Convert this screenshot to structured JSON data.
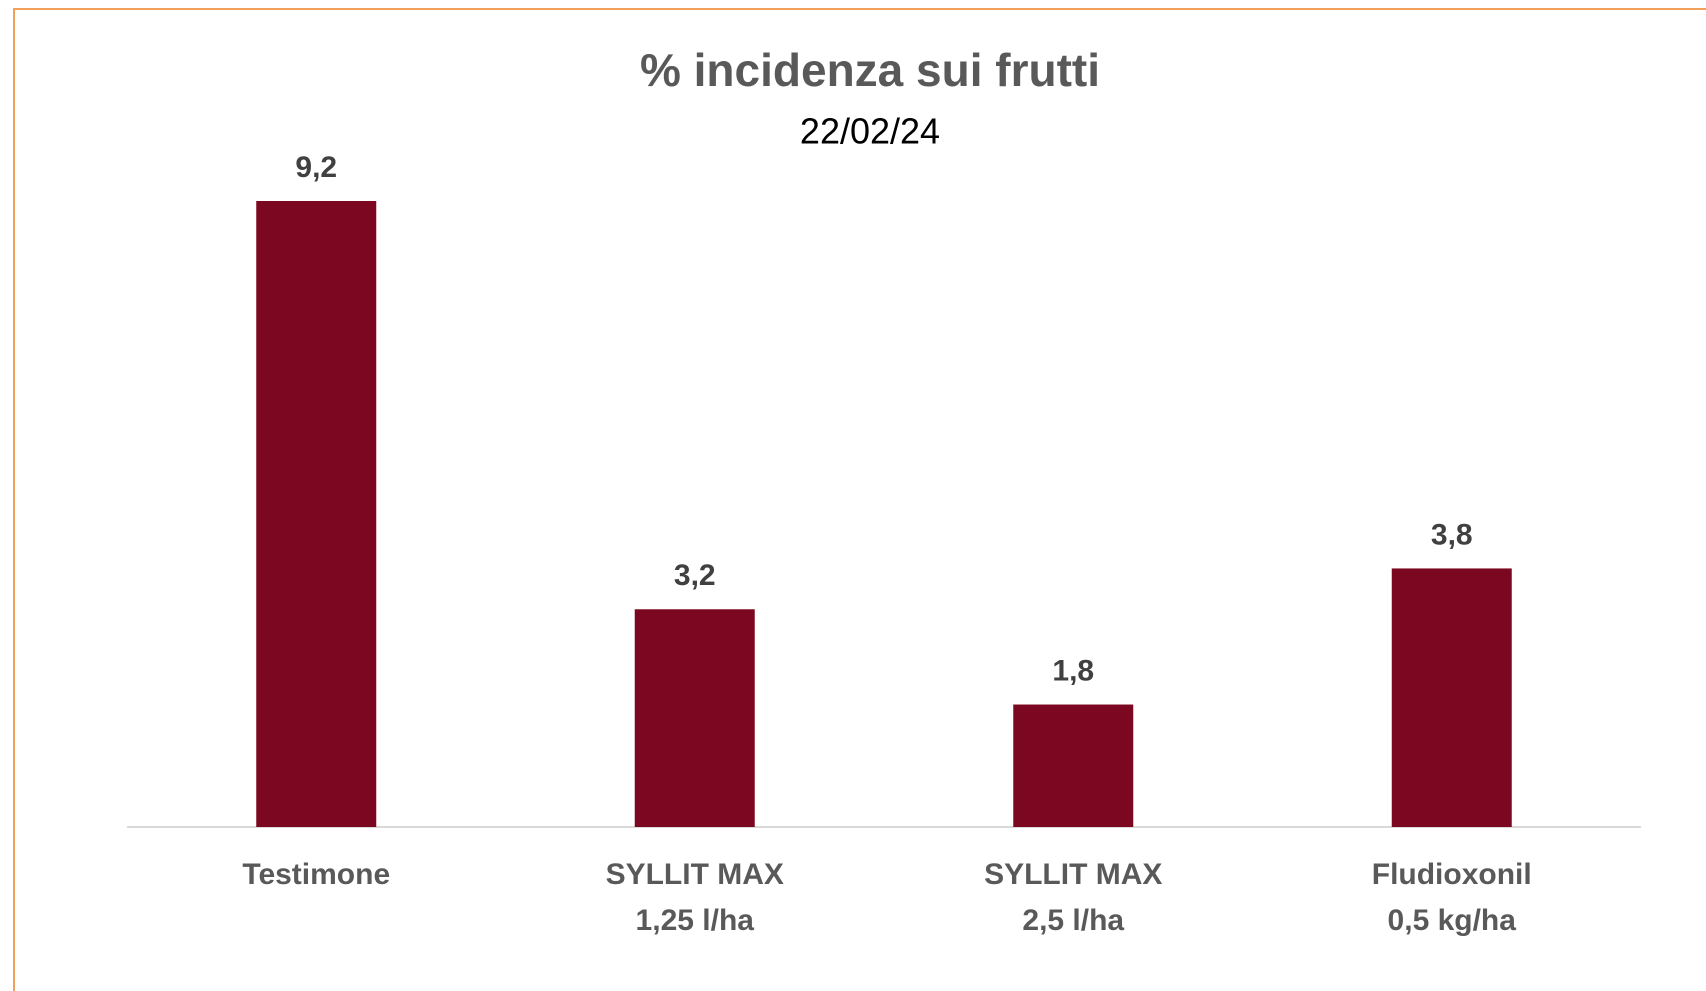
{
  "chart_data": {
    "type": "bar",
    "title": "% incidenza sui frutti",
    "subtitle": "22/02/24",
    "categories": [
      [
        "Testimone"
      ],
      [
        "SYLLIT MAX",
        "1,25 l/ha"
      ],
      [
        "SYLLIT MAX",
        "2,5 l/ha"
      ],
      [
        "Fludioxonil",
        "0,5 kg/ha"
      ]
    ],
    "values": [
      9.2,
      3.2,
      1.8,
      3.8
    ],
    "value_labels": [
      "9,2",
      "3,2",
      "1,8",
      "3,8"
    ],
    "color": "#7b0820"
  }
}
